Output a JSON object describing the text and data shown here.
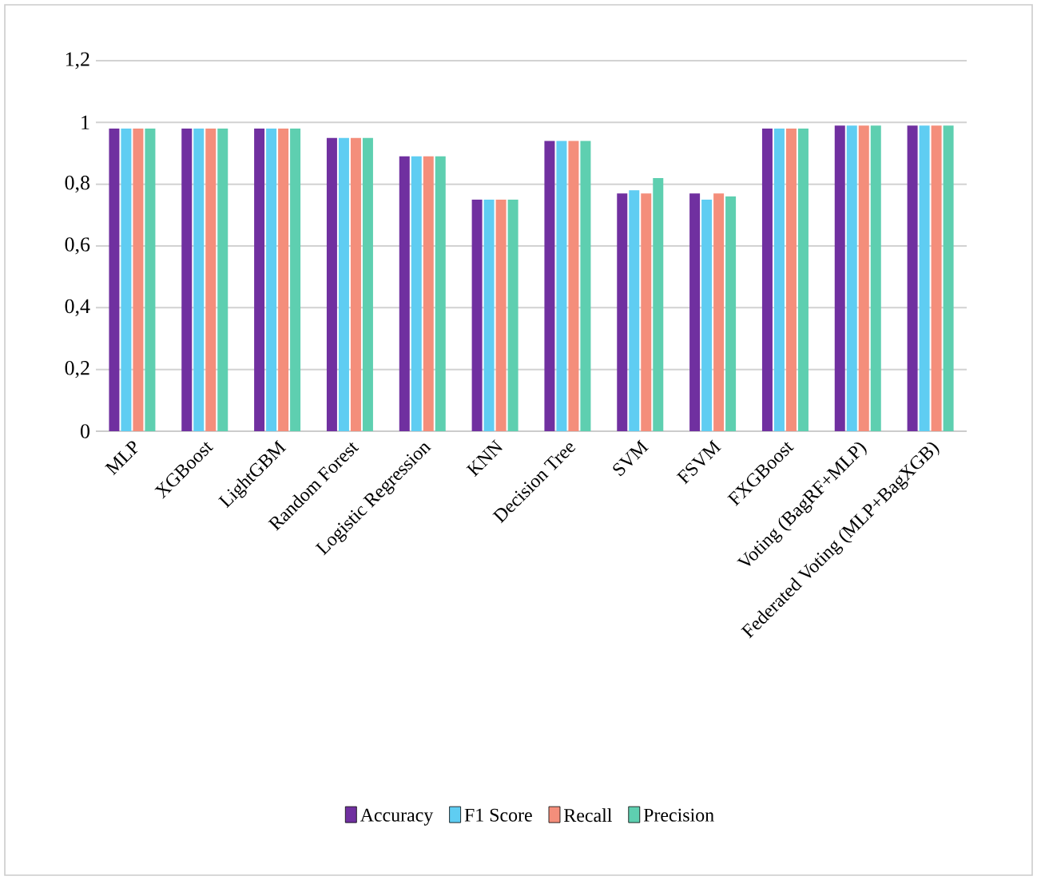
{
  "chart_data": {
    "type": "bar",
    "categories": [
      "MLP",
      "XGBoost",
      "LightGBM",
      "Random Forest",
      "Logistic Regression",
      "KNN",
      "Decision Tree",
      "SVM",
      "FSVM",
      "FXGBoost",
      "Voting (BagRF+MLP)",
      "Federated Voting (MLP+BagXGB)"
    ],
    "series": [
      {
        "name": "Accuracy",
        "color": "#7030a0",
        "values": [
          0.98,
          0.98,
          0.98,
          0.95,
          0.89,
          0.75,
          0.94,
          0.77,
          0.77,
          0.98,
          0.99,
          0.99
        ]
      },
      {
        "name": "F1 Score",
        "color": "#5fcdf2",
        "values": [
          0.98,
          0.98,
          0.98,
          0.95,
          0.89,
          0.75,
          0.94,
          0.78,
          0.75,
          0.98,
          0.99,
          0.99
        ]
      },
      {
        "name": "Recall",
        "color": "#f48e7b",
        "values": [
          0.98,
          0.98,
          0.98,
          0.95,
          0.89,
          0.75,
          0.94,
          0.77,
          0.77,
          0.98,
          0.99,
          0.99
        ]
      },
      {
        "name": "Precision",
        "color": "#5ecfb0",
        "values": [
          0.98,
          0.98,
          0.98,
          0.95,
          0.89,
          0.75,
          0.94,
          0.82,
          0.76,
          0.98,
          0.99,
          0.99
        ]
      }
    ],
    "ylim": [
      0,
      1.2
    ],
    "yticks": [
      {
        "value": 0,
        "label": "0"
      },
      {
        "value": 0.2,
        "label": "0,2"
      },
      {
        "value": 0.4,
        "label": "0,4"
      },
      {
        "value": 0.6,
        "label": "0,6"
      },
      {
        "value": 0.8,
        "label": "0,8"
      },
      {
        "value": 1,
        "label": "1"
      },
      {
        "value": 1.2,
        "label": "1,2"
      }
    ],
    "grid": "y",
    "legend": "bottom"
  }
}
